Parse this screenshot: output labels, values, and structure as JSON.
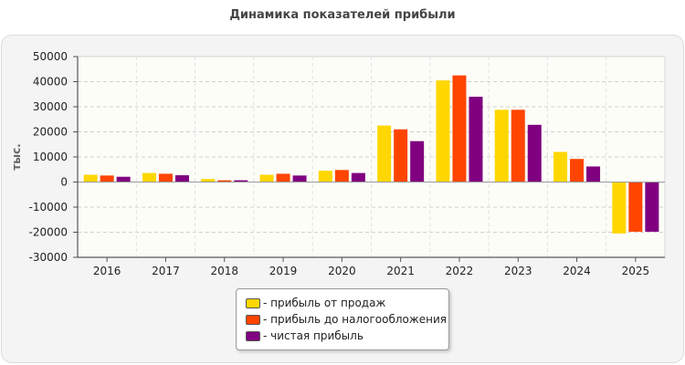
{
  "chart_data": {
    "type": "bar",
    "title": "Динамика показателей прибыли",
    "xlabel": "",
    "ylabel": "тыс.",
    "ylim": [
      -30000,
      50000
    ],
    "yticks": [
      50000,
      40000,
      30000,
      20000,
      10000,
      0,
      -10000,
      -20000,
      -30000
    ],
    "grid": true,
    "legend_position": "bottom-center",
    "categories": [
      "2016",
      "2017",
      "2018",
      "2019",
      "2020",
      "2021",
      "2022",
      "2023",
      "2024",
      "2025"
    ],
    "series": [
      {
        "name": "- прибыль от продаж",
        "color": "#FFD700",
        "values": [
          2900,
          3600,
          1200,
          2900,
          4500,
          22500,
          40500,
          28800,
          12000,
          -20500
        ]
      },
      {
        "name": "- прибыль до налогообложения",
        "color": "#FF4500",
        "values": [
          2600,
          3300,
          700,
          3300,
          4800,
          21000,
          42500,
          28800,
          9200,
          -19800
        ]
      },
      {
        "name": "- чистая прибыль",
        "color": "#800080",
        "values": [
          2100,
          2700,
          700,
          2600,
          3600,
          16300,
          34000,
          22800,
          6200,
          -19800
        ]
      }
    ]
  }
}
